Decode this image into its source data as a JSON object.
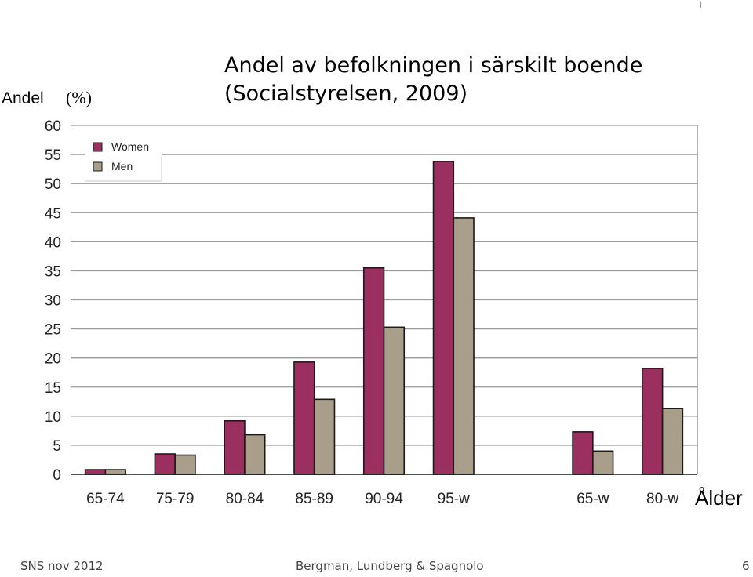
{
  "page": {
    "title_line1": "Andel av befolkningen i särskilt boende",
    "title_line2": "(Socialstyrelsen, 2009)",
    "footer_left": "SNS nov 2012",
    "footer_center": "Bergman, Lundberg & Spagnolo",
    "footer_right": "6"
  },
  "chart_data": {
    "type": "bar",
    "title": "Andel av befolkningen i särskilt boende (Socialstyrelsen, 2009)",
    "ylabel": "Andel",
    "ylabel_unit": "(%)",
    "xlabel": "Ålder",
    "ylim": [
      0,
      60
    ],
    "yticks": [
      0,
      5,
      10,
      15,
      20,
      25,
      30,
      35,
      40,
      45,
      50,
      55,
      60
    ],
    "grid": true,
    "legend_position": "top-left",
    "categories": [
      "65-74",
      "75-79",
      "80-84",
      "85-89",
      "90-94",
      "95-w",
      "65-w",
      "80-w"
    ],
    "gap_before_category_index": 6,
    "series": [
      {
        "name": "Women",
        "color": "#9b3060",
        "values": [
          0.8,
          3.5,
          9.2,
          19.3,
          35.5,
          53.8,
          7.3,
          18.2
        ]
      },
      {
        "name": "Men",
        "color": "#a89e8a",
        "values": [
          0.8,
          3.3,
          6.8,
          12.9,
          25.3,
          44.1,
          4.0,
          11.3
        ]
      }
    ]
  }
}
